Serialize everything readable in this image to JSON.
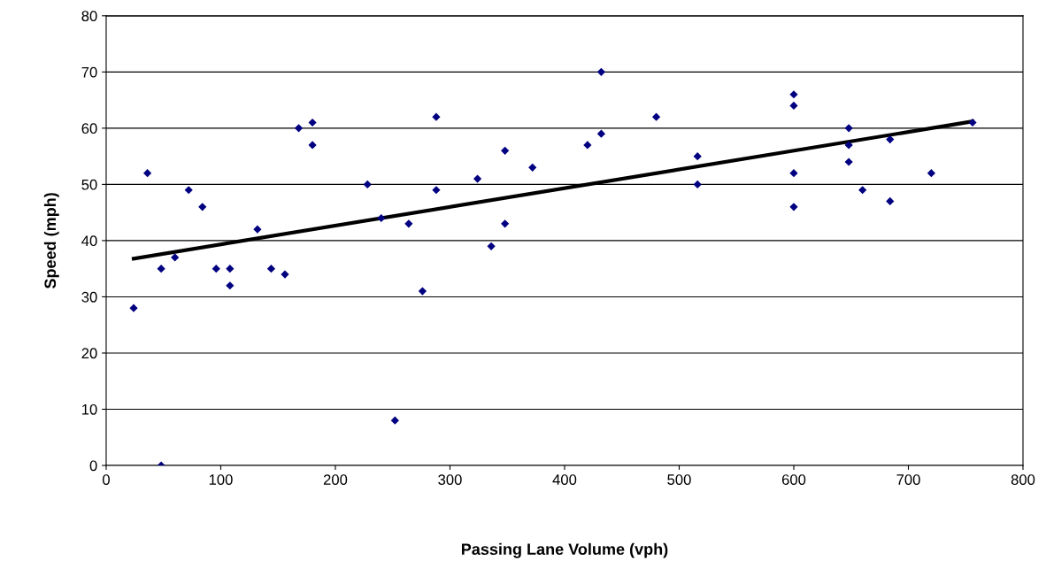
{
  "chart_data": {
    "type": "scatter",
    "xlabel": "Passing Lane Volume (vph)",
    "ylabel": "Speed (mph)",
    "xlim": [
      0,
      800
    ],
    "xticks": [
      0,
      100,
      200,
      300,
      400,
      500,
      600,
      700,
      800
    ],
    "ylim": [
      0,
      80
    ],
    "yticks": [
      0,
      10,
      20,
      30,
      40,
      50,
      60,
      70,
      80
    ],
    "grid": "y",
    "series": [
      {
        "marker": "diamond",
        "color": "#000080",
        "x": [
          24,
          36,
          48,
          48,
          60,
          72,
          84,
          96,
          108,
          108,
          132,
          144,
          156,
          168,
          180,
          180,
          228,
          240,
          264,
          252,
          276,
          288,
          288,
          324,
          336,
          348,
          348,
          372,
          420,
          432,
          432,
          480,
          516,
          516,
          600,
          600,
          600,
          600,
          648,
          648,
          648,
          660,
          684,
          684,
          720,
          756
        ],
        "values": [
          28,
          52,
          35,
          0,
          37,
          49,
          46,
          35,
          35,
          32,
          42,
          35,
          34,
          60,
          61,
          57,
          50,
          44,
          43,
          8,
          31,
          62,
          49,
          51,
          39,
          43,
          56,
          53,
          57,
          70,
          59,
          62,
          55,
          50,
          66,
          64,
          52,
          46,
          60,
          57,
          54,
          49,
          47,
          58,
          52,
          61
        ]
      },
      {
        "type": "line",
        "marker": "none",
        "color": "#000000",
        "x": [
          24,
          756
        ],
        "values": [
          36.8,
          61.2
        ]
      }
    ]
  }
}
